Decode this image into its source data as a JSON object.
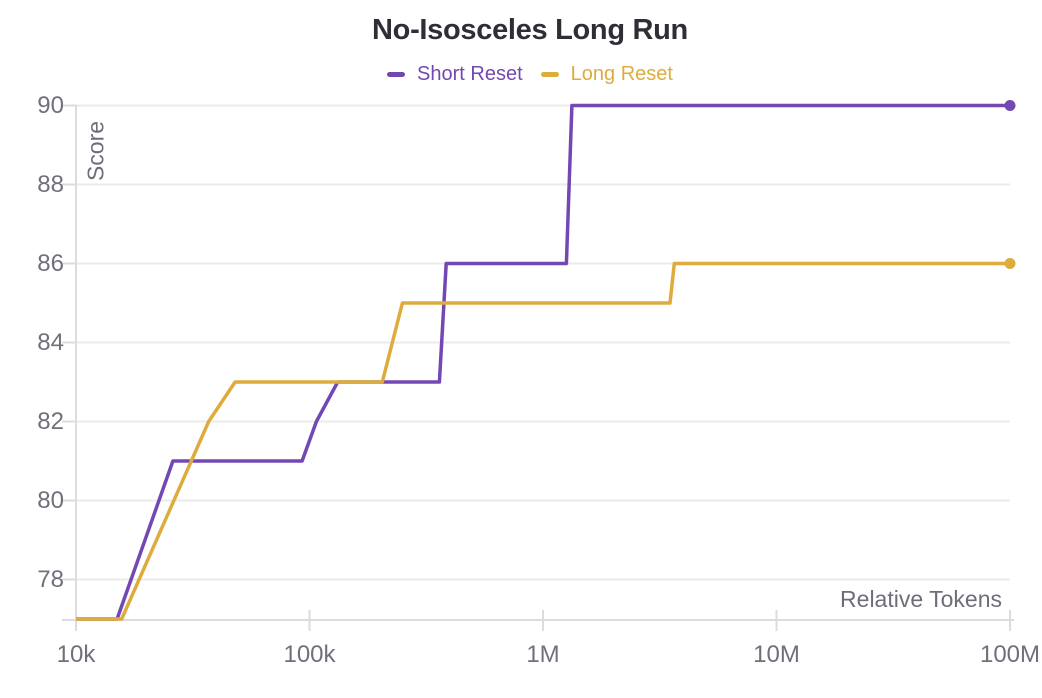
{
  "title": "No-Isosceles Long Run",
  "legend": {
    "items": [
      {
        "label": "Short Reset",
        "color": "#7348b2"
      },
      {
        "label": "Long Reset",
        "color": "#deac3c"
      }
    ]
  },
  "colors": {
    "short_reset": "#7348b2",
    "long_reset": "#deac3c",
    "title_text": "#2e2e36",
    "axis_text": "#6e6e7a",
    "tick_text": "#70707c",
    "gridline": "#ebebee",
    "axis_line": "#dcdce0"
  },
  "chart_data": {
    "type": "line",
    "title": "No-Isosceles Long Run",
    "xlabel": "Relative Tokens",
    "ylabel": "Score",
    "x_scale": "log",
    "xlim": [
      10000,
      100000000
    ],
    "ylim": [
      77,
      90
    ],
    "grid": "horizontal",
    "legend_position": "top-center",
    "x_ticks": [
      {
        "value": 10000,
        "label": "10k"
      },
      {
        "value": 100000,
        "label": "100k"
      },
      {
        "value": 1000000,
        "label": "1M"
      },
      {
        "value": 10000000,
        "label": "10M"
      },
      {
        "value": 100000000,
        "label": "100M"
      }
    ],
    "y_ticks": [
      78,
      80,
      82,
      84,
      86,
      88,
      90
    ],
    "series": [
      {
        "name": "Short Reset",
        "color": "#7348b2",
        "end_marker": true,
        "points": [
          [
            10000,
            77
          ],
          [
            15000,
            77
          ],
          [
            26000,
            81
          ],
          [
            93000,
            81
          ],
          [
            107000,
            82
          ],
          [
            132000,
            83
          ],
          [
            360000,
            83
          ],
          [
            385000,
            86
          ],
          [
            1260000,
            86
          ],
          [
            1330000,
            90
          ],
          [
            100000000,
            90
          ]
        ]
      },
      {
        "name": "Long Reset",
        "color": "#deac3c",
        "end_marker": true,
        "points": [
          [
            10000,
            77
          ],
          [
            15700,
            77
          ],
          [
            37000,
            82
          ],
          [
            48000,
            83
          ],
          [
            205000,
            83
          ],
          [
            250000,
            85
          ],
          [
            3500000,
            85
          ],
          [
            3650000,
            86
          ],
          [
            100000000,
            86
          ]
        ]
      }
    ]
  }
}
